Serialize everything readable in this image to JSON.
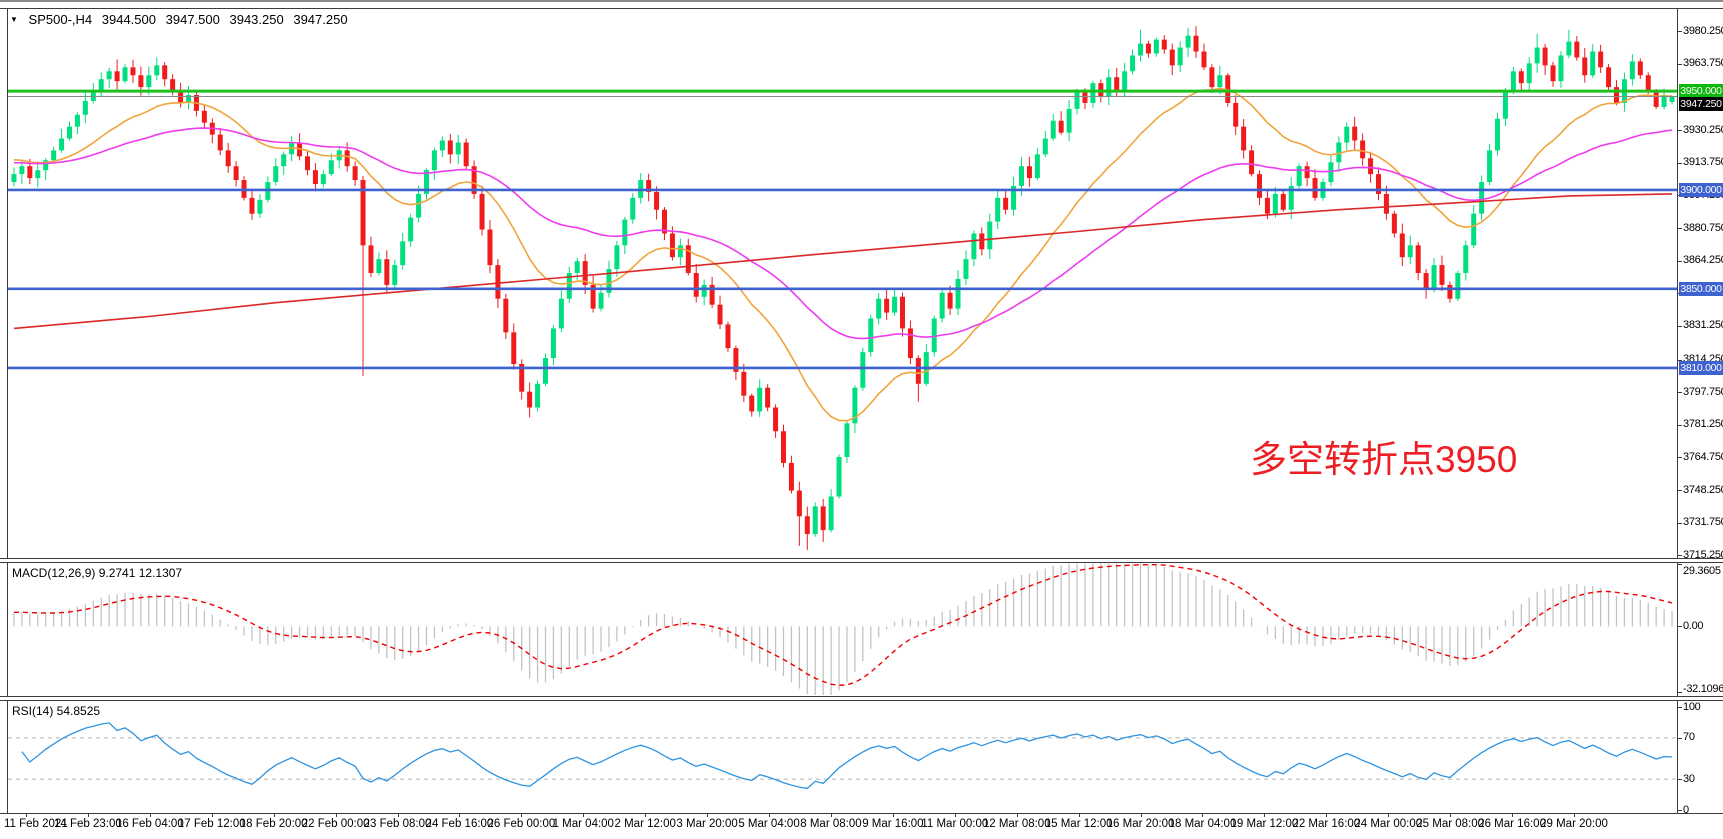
{
  "header": {
    "symbol": "SP500-,H4",
    "open": "3944.500",
    "high": "3947.500",
    "low": "3943.250",
    "close": "3947.250"
  },
  "annotation": {
    "text": "多空转折点3950",
    "color": "#ed1f24"
  },
  "panels": {
    "macd": {
      "label": "MACD(12,26,9) 9.2741 12.1307",
      "axis_labels": [
        "29.3605",
        "0.00",
        "-32.1096"
      ]
    },
    "rsi": {
      "label": "RSI(14) 54.8525",
      "axis_labels": [
        "100",
        "70",
        "30",
        "0"
      ]
    }
  },
  "price_axis": {
    "tick_labels": [
      "3980.250",
      "3963.750",
      "3930.250",
      "3913.750",
      "3897.250",
      "3880.750",
      "3864.250",
      "3847.750",
      "3831.250",
      "3814.250",
      "3797.750",
      "3781.250",
      "3764.750",
      "3748.250",
      "3731.750",
      "3715.250"
    ],
    "badges": [
      {
        "value": 3950,
        "label": "3950.000",
        "type": "green"
      },
      {
        "value": 3947.25,
        "label": "3947.250",
        "type": "black"
      },
      {
        "value": 3900,
        "label": "3900.000",
        "type": "blue"
      },
      {
        "value": 3850,
        "label": "3850.000",
        "type": "blue"
      },
      {
        "value": 3810,
        "label": "3810.000",
        "type": "blue"
      }
    ]
  },
  "time_axis": {
    "labels": [
      "11 Feb 2021",
      "14 Feb 23:00",
      "16 Feb 04:00",
      "17 Feb 12:00",
      "18 Feb 20:00",
      "22 Feb 00:00",
      "23 Feb 08:00",
      "24 Feb 16:00",
      "26 Feb 00:00",
      "1 Mar 04:00",
      "2 Mar 12:00",
      "3 Mar 20:00",
      "5 Mar 04:00",
      "8 Mar 08:00",
      "9 Mar 16:00",
      "11 Mar 00:00",
      "12 Mar 08:00",
      "15 Mar 12:00",
      "16 Mar 20:00",
      "18 Mar 04:00",
      "19 Mar 12:00",
      "22 Mar 16:00",
      "24 Mar 00:00",
      "25 Mar 08:00",
      "26 Mar 16:00",
      "29 Mar 20:00"
    ]
  },
  "chart_data": {
    "type": "candlestick",
    "symbol": "SP500",
    "timeframe": "H4",
    "title": "SP500-,H4",
    "ylim": [
      3715.25,
      3980.25
    ],
    "horizontal_lines": [
      {
        "price": 3950,
        "color": "#1fc11f",
        "role": "pivot"
      },
      {
        "price": 3900,
        "color": "#3e63d0",
        "role": "support"
      },
      {
        "price": 3850,
        "color": "#3e63d0",
        "role": "support"
      },
      {
        "price": 3810,
        "color": "#3e63d0",
        "role": "support"
      },
      {
        "price": 3947.25,
        "color": "#888888",
        "role": "current-price"
      }
    ],
    "open_first": 3904,
    "closes": [
      3908,
      3912,
      3906,
      3910,
      3915,
      3920,
      3926,
      3932,
      3938,
      3945,
      3950,
      3956,
      3960,
      3955,
      3962,
      3958,
      3952,
      3958,
      3963,
      3956,
      3950,
      3944,
      3948,
      3940,
      3934,
      3928,
      3920,
      3912,
      3905,
      3896,
      3888,
      3895,
      3904,
      3912,
      3918,
      3924,
      3917,
      3910,
      3903,
      3908,
      3915,
      3920,
      3912,
      3905,
      3872,
      3858,
      3865,
      3852,
      3862,
      3874,
      3886,
      3898,
      3910,
      3920,
      3925,
      3918,
      3924,
      3912,
      3898,
      3880,
      3862,
      3845,
      3828,
      3812,
      3798,
      3790,
      3802,
      3815,
      3830,
      3845,
      3858,
      3864,
      3852,
      3840,
      3848,
      3860,
      3872,
      3885,
      3896,
      3905,
      3899,
      3890,
      3878,
      3866,
      3872,
      3858,
      3846,
      3852,
      3842,
      3832,
      3820,
      3808,
      3796,
      3788,
      3800,
      3790,
      3778,
      3762,
      3748,
      3735,
      3726,
      3740,
      3728,
      3745,
      3765,
      3782,
      3800,
      3818,
      3835,
      3845,
      3838,
      3846,
      3830,
      3815,
      3802,
      3818,
      3835,
      3848,
      3840,
      3855,
      3865,
      3878,
      3870,
      3884,
      3896,
      3890,
      3902,
      3912,
      3906,
      3918,
      3926,
      3935,
      3929,
      3941,
      3950,
      3944,
      3954,
      3947,
      3957,
      3950,
      3960,
      3968,
      3974,
      3969,
      3976,
      3971,
      3963,
      3972,
      3978,
      3970,
      3962,
      3952,
      3958,
      3944,
      3932,
      3920,
      3908,
      3896,
      3888,
      3898,
      3890,
      3902,
      3912,
      3906,
      3896,
      3904,
      3914,
      3924,
      3932,
      3925,
      3916,
      3908,
      3898,
      3888,
      3878,
      3866,
      3872,
      3858,
      3850,
      3862,
      3852,
      3845,
      3858,
      3872,
      3888,
      3904,
      3920,
      3936,
      3950,
      3960,
      3954,
      3964,
      3972,
      3963,
      3955,
      3968,
      3975,
      3967,
      3958,
      3970,
      3962,
      3952,
      3944,
      3956,
      3965,
      3958,
      3950,
      3942,
      3948,
      3947.25
    ],
    "wick_overrides": {
      "13": {
        "high": 3966
      },
      "18": {
        "high": 3967
      },
      "44": {
        "low": 3806
      },
      "65": {
        "low": 3785
      },
      "99": {
        "low": 3720
      },
      "100": {
        "low": 3718
      },
      "102": {
        "low": 3722
      },
      "114": {
        "low": 3793
      },
      "142": {
        "high": 3981
      },
      "148": {
        "high": 3982
      },
      "181": {
        "low": 3843
      },
      "192": {
        "high": 3979
      },
      "196": {
        "high": 3981
      },
      "209": {
        "open": 3944.5,
        "high": 3947.5,
        "low": 3943.25,
        "close": 3947.25
      }
    },
    "moving_averages": [
      {
        "name": "fast-ma",
        "type": "ema",
        "period": 21,
        "color": "#f0a43c",
        "seed": 3916
      },
      {
        "name": "mid-ma",
        "type": "ema",
        "period": 55,
        "color": "#ee3cee",
        "seed": 3914
      },
      {
        "name": "slow-ma",
        "type": "waypoints",
        "color": "#dc2828",
        "points": [
          [
            0,
            3830
          ],
          [
            0.08,
            3836
          ],
          [
            0.16,
            3843
          ],
          [
            0.24,
            3849
          ],
          [
            0.32,
            3855
          ],
          [
            0.4,
            3861
          ],
          [
            0.48,
            3867
          ],
          [
            0.56,
            3873
          ],
          [
            0.64,
            3879
          ],
          [
            0.72,
            3885
          ],
          [
            0.8,
            3890
          ],
          [
            0.88,
            3894
          ],
          [
            0.94,
            3897
          ],
          [
            1,
            3898
          ]
        ]
      }
    ],
    "indicators": {
      "macd": {
        "fast": 12,
        "slow": 26,
        "signal": 9,
        "value_main": 9.2741,
        "value_signal": 12.1307,
        "scale": [
          -32.1096,
          29.3605
        ],
        "histogram_color": "#c2c2c2",
        "signal_color": "#f00000"
      },
      "rsi": {
        "period": 14,
        "value": 54.8525,
        "levels": [
          70,
          30
        ],
        "scale": [
          0,
          100
        ],
        "color": "#2f93e0"
      }
    },
    "candle_colors": {
      "up": "#00df7f",
      "down": "#f01b1b"
    }
  }
}
